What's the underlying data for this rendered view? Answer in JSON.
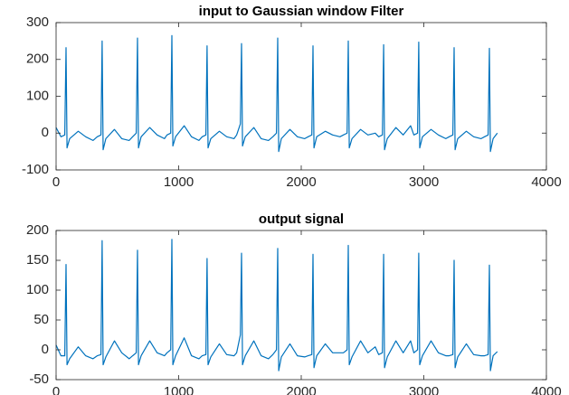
{
  "chart_data": [
    {
      "type": "line",
      "title": "input to Gaussian window Filter",
      "x": [
        0,
        40,
        71,
        81,
        89,
        111,
        181,
        241,
        301,
        336,
        366,
        376,
        384,
        406,
        476,
        536,
        596,
        624,
        654,
        664,
        672,
        694,
        764,
        824,
        884,
        905,
        935,
        945,
        953,
        975,
        1045,
        1105,
        1165,
        1192,
        1222,
        1232,
        1240,
        1262,
        1332,
        1392,
        1452,
        1473,
        1503,
        1513,
        1521,
        1543,
        1613,
        1673,
        1733,
        1768,
        1798,
        1808,
        1816,
        1838,
        1908,
        1968,
        2028,
        2056,
        2086,
        2096,
        2104,
        2126,
        2196,
        2256,
        2316,
        2344,
        2374,
        2384,
        2392,
        2414,
        2484,
        2544,
        2604,
        2632,
        2662,
        2672,
        2680,
        2702,
        2772,
        2832,
        2892,
        2919,
        2949,
        2959,
        2967,
        2989,
        3059,
        3119,
        3179,
        3207,
        3237,
        3247,
        3255,
        3277,
        3347,
        3407,
        3467,
        3495,
        3525,
        3535,
        3543,
        3565,
        3600
      ],
      "series": [
        {
          "color": "#0072bd",
          "values": [
            15,
            -10,
            -5,
            232,
            -40,
            -15,
            5,
            -10,
            -20,
            -10,
            -5,
            250,
            -45,
            -15,
            10,
            -15,
            -20,
            -10,
            0,
            258,
            -40,
            -10,
            15,
            -5,
            -15,
            -5,
            0,
            265,
            -35,
            -10,
            20,
            -10,
            -20,
            -10,
            -5,
            237,
            -40,
            -15,
            5,
            -10,
            -15,
            -5,
            25,
            243,
            -35,
            -10,
            15,
            -15,
            -20,
            -10,
            0,
            258,
            -50,
            -15,
            10,
            -10,
            -15,
            -10,
            -5,
            237,
            -40,
            -10,
            5,
            -5,
            -10,
            -5,
            0,
            250,
            -40,
            -15,
            10,
            -5,
            0,
            -10,
            -5,
            240,
            -45,
            -15,
            15,
            -5,
            20,
            -5,
            0,
            247,
            -40,
            -10,
            10,
            -5,
            -15,
            -10,
            -5,
            232,
            -45,
            -15,
            5,
            -10,
            -15,
            -10,
            -5,
            230,
            -50,
            -15,
            0
          ]
        }
      ],
      "xlim": [
        0,
        4000
      ],
      "xticks": [
        0,
        1000,
        2000,
        3000,
        4000
      ],
      "ylim": [
        -100,
        300
      ],
      "yticks": [
        -100,
        0,
        100,
        200,
        300
      ]
    },
    {
      "type": "line",
      "title": "output signal",
      "x": [
        0,
        40,
        71,
        81,
        89,
        111,
        181,
        241,
        301,
        336,
        366,
        376,
        384,
        406,
        476,
        536,
        596,
        624,
        654,
        664,
        672,
        694,
        764,
        824,
        884,
        905,
        935,
        945,
        953,
        975,
        1045,
        1105,
        1165,
        1192,
        1222,
        1232,
        1240,
        1262,
        1332,
        1392,
        1452,
        1473,
        1503,
        1513,
        1521,
        1543,
        1613,
        1673,
        1733,
        1768,
        1798,
        1808,
        1816,
        1838,
        1908,
        1968,
        2028,
        2056,
        2086,
        2096,
        2104,
        2126,
        2196,
        2256,
        2316,
        2344,
        2374,
        2384,
        2392,
        2414,
        2484,
        2544,
        2604,
        2632,
        2662,
        2672,
        2680,
        2702,
        2772,
        2832,
        2892,
        2919,
        2949,
        2959,
        2967,
        2989,
        3059,
        3119,
        3179,
        3207,
        3237,
        3247,
        3255,
        3277,
        3347,
        3407,
        3467,
        3495,
        3525,
        3535,
        3543,
        3565,
        3600
      ],
      "series": [
        {
          "color": "#0072bd",
          "values": [
            8,
            -10,
            -10,
            143,
            -25,
            -15,
            5,
            -10,
            -15,
            -10,
            -8,
            183,
            -25,
            -12,
            15,
            -5,
            -15,
            -10,
            -5,
            167,
            -25,
            -10,
            15,
            -5,
            -10,
            -5,
            0,
            185,
            -25,
            -10,
            20,
            -10,
            -15,
            -10,
            -8,
            153,
            -25,
            -12,
            10,
            -8,
            -10,
            -5,
            25,
            162,
            -25,
            -10,
            15,
            -10,
            -15,
            -8,
            0,
            170,
            -35,
            -12,
            10,
            -10,
            -12,
            -10,
            -8,
            160,
            -30,
            -10,
            10,
            -5,
            -5,
            -5,
            0,
            175,
            -25,
            -12,
            15,
            -5,
            5,
            -8,
            -5,
            160,
            -30,
            -12,
            15,
            -5,
            15,
            -5,
            0,
            162,
            -25,
            -10,
            15,
            -5,
            -10,
            -10,
            -8,
            150,
            -30,
            -12,
            10,
            -8,
            -10,
            -10,
            -8,
            142,
            -35,
            -10,
            -3
          ]
        }
      ],
      "xlim": [
        0,
        4000
      ],
      "xticks": [
        0,
        1000,
        2000,
        3000,
        4000
      ],
      "ylim": [
        -50,
        200
      ],
      "yticks": [
        -50,
        0,
        50,
        100,
        150,
        200
      ]
    }
  ]
}
